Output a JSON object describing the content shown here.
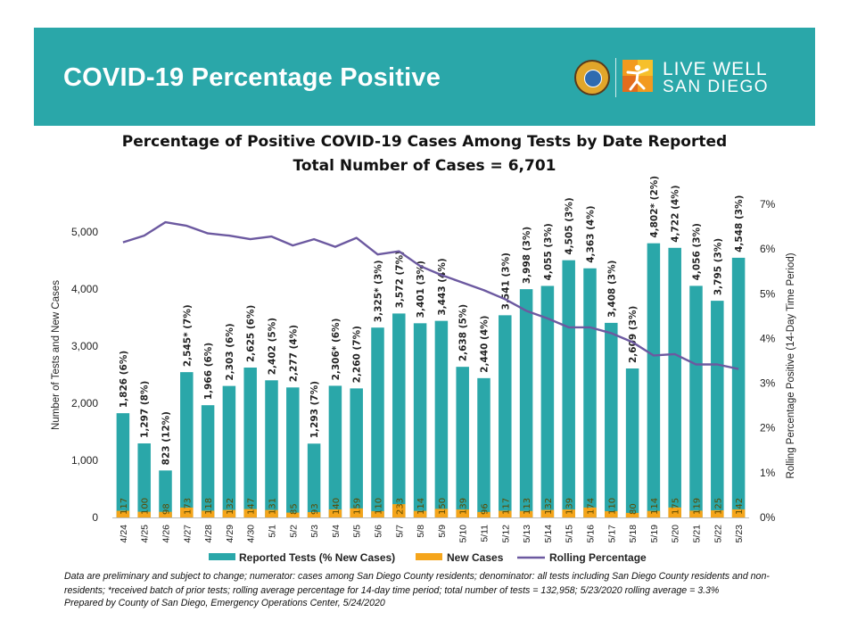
{
  "banner": {
    "title": "COVID-19 Percentage Positive",
    "logo_line1": "LIVE WELL",
    "logo_line2": "SAN DIEGO"
  },
  "colors": {
    "banner": "#2aa7a9",
    "bars": "#2aa7a9",
    "new_cases": "#f5a51b",
    "line": "#6c59a0",
    "new_case_label": "#5a4a00"
  },
  "footnote": "Data are preliminary and subject to change; numerator: cases among San Diego County residents; denominator: all tests including San Diego County residents and non-residents; *received batch of prior tests; rolling average percentage for 14-day time period; total number of tests = 132,958; 5/23/2020 rolling average = 3.3%",
  "prepared_by": "Prepared by County of San Diego, Emergency Operations Center, 5/24/2020",
  "chart_data": {
    "type": "bar",
    "title": "Percentage of Positive COVID-19 Cases Among Tests by Date Reported",
    "subtitle": "Total Number of Cases = 6,701",
    "ylabel": "Number of Tests and New Cases",
    "y2label": "Rolling Percentage Positive (14-Day Time Period)",
    "xlabel": "",
    "ylim": [
      0,
      5500
    ],
    "y2lim": [
      0,
      7
    ],
    "yticks": [
      "0",
      "1,000",
      "2,000",
      "3,000",
      "4,000",
      "5,000"
    ],
    "y2ticks": [
      "0%",
      "1%",
      "2%",
      "3%",
      "4%",
      "5%",
      "6%",
      "7%"
    ],
    "grid": false,
    "legend_position": "bottom",
    "categories": [
      "4/24",
      "4/25",
      "4/26",
      "4/27",
      "4/28",
      "4/29",
      "4/30",
      "5/1",
      "5/2",
      "5/3",
      "5/4",
      "5/5",
      "5/6",
      "5/7",
      "5/8",
      "5/9",
      "5/10",
      "5/11",
      "5/12",
      "5/13",
      "5/14",
      "5/15",
      "5/16",
      "5/17",
      "5/18",
      "5/19",
      "5/20",
      "5/21",
      "5/22",
      "5/23"
    ],
    "series": [
      {
        "name": "Reported Tests (% New Cases)",
        "type": "bar",
        "values": [
          1826,
          1297,
          823,
          2545,
          1966,
          2303,
          2625,
          2402,
          2277,
          1293,
          2306,
          2260,
          3325,
          3572,
          3401,
          3443,
          2638,
          2440,
          3541,
          3998,
          4055,
          4505,
          4363,
          3408,
          2609,
          4802,
          4722,
          4056,
          3795,
          4548
        ],
        "labels": [
          "1,826 (6%)",
          "1,297 (8%)",
          "823 (12%)",
          "2,545* (7%)",
          "1,966 (6%)",
          "2,303 (6%)",
          "2,625 (6%)",
          "2,402 (5%)",
          "2,277 (4%)",
          "1,293 (7%)",
          "2,306* (6%)",
          "2,260 (7%)",
          "3,325* (3%)",
          "3,572 (7%)",
          "3,401 (3%)",
          "3,443 (4%)",
          "2,638 (5%)",
          "2,440 (4%)",
          "3,541 (3%)",
          "3,998 (3%)",
          "4,055 (3%)",
          "4,505 (3%)",
          "4,363 (4%)",
          "3,408 (3%)",
          "2,609 (3%)",
          "4,802* (2%)",
          "4,722 (4%)",
          "4,056 (3%)",
          "3,795 (3%)",
          "4,548 (3%)"
        ]
      },
      {
        "name": "New Cases",
        "type": "bar",
        "values": [
          117,
          100,
          98,
          173,
          118,
          132,
          147,
          131,
          85,
          93,
          140,
          159,
          110,
          233,
          114,
          150,
          139,
          96,
          117,
          113,
          132,
          139,
          174,
          110,
          80,
          114,
          175,
          119,
          125,
          142
        ]
      },
      {
        "name": "Rolling Percentage",
        "type": "line",
        "axis": "right",
        "values": [
          6.15,
          6.3,
          6.6,
          6.52,
          6.35,
          6.3,
          6.22,
          6.28,
          6.08,
          6.22,
          6.05,
          6.25,
          5.88,
          5.95,
          5.62,
          5.42,
          5.25,
          5.08,
          4.88,
          4.62,
          4.45,
          4.25,
          4.25,
          4.12,
          3.92,
          3.62,
          3.65,
          3.42,
          3.42,
          3.32
        ]
      }
    ]
  }
}
